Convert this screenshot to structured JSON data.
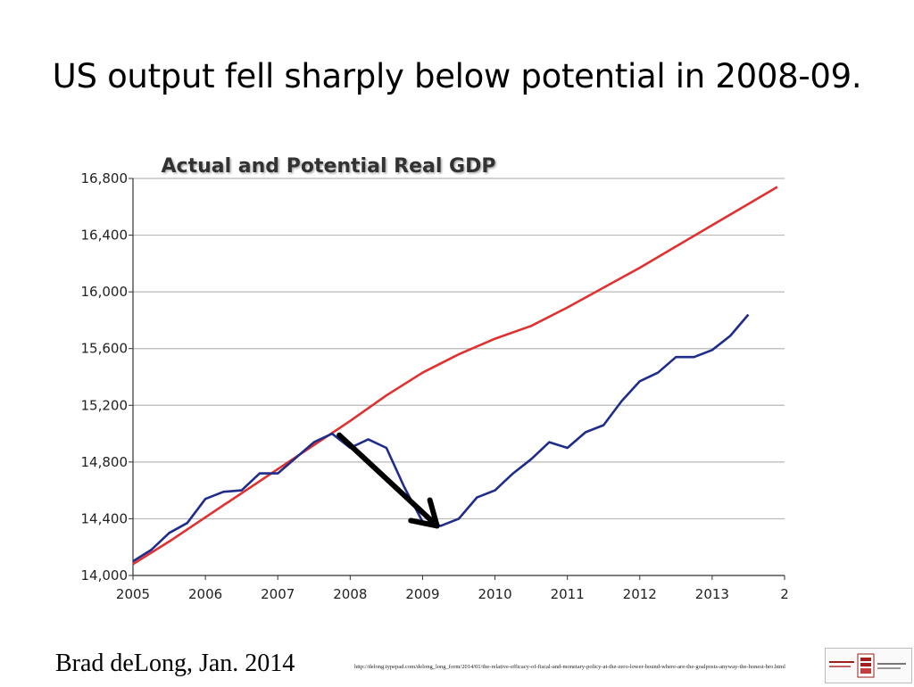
{
  "slide": {
    "title": "US output fell sharply below potential in 2008-09.",
    "credit": "Brad deLong, Jan. 2014",
    "source_url": "http://delong.typepad.com/delong_long_form/2014/01/the-relative-efficacy-of-fiscal-and-monetary-policy-at-the-zero-lower-bound-where-are-the-goalposts-anyway-the-honest-bro.html"
  },
  "chart_data": {
    "type": "line",
    "title": "Actual and Potential Real GDP",
    "xlabel": "",
    "ylabel": "",
    "xlim": [
      2005,
      2014
    ],
    "ylim": [
      14000,
      16800
    ],
    "x_tick_labels": [
      "2005",
      "2006",
      "2007",
      "2008",
      "2009",
      "2010",
      "2011",
      "2012",
      "2013",
      "2"
    ],
    "y_tick_labels": [
      "14,000",
      "14,400",
      "14,800",
      "15,200",
      "15,600",
      "16,000",
      "16,400",
      "16,800"
    ],
    "y_ticks": [
      14000,
      14400,
      14800,
      15200,
      15600,
      16000,
      16400,
      16800
    ],
    "grid": "horizontal",
    "series": [
      {
        "color": "#e03030",
        "points": [
          [
            2005.0,
            14080
          ],
          [
            2005.5,
            14240
          ],
          [
            2006.0,
            14410
          ],
          [
            2006.5,
            14580
          ],
          [
            2007.0,
            14750
          ],
          [
            2007.5,
            14920
          ],
          [
            2008.0,
            15090
          ],
          [
            2008.5,
            15270
          ],
          [
            2009.0,
            15430
          ],
          [
            2009.5,
            15560
          ],
          [
            2010.0,
            15670
          ],
          [
            2010.5,
            15760
          ],
          [
            2011.0,
            15890
          ],
          [
            2011.5,
            16030
          ],
          [
            2012.0,
            16170
          ],
          [
            2012.5,
            16320
          ],
          [
            2013.0,
            16470
          ],
          [
            2013.5,
            16620
          ],
          [
            2013.9,
            16740
          ]
        ]
      },
      {
        "color": "#1f2d8a",
        "points": [
          [
            2005.0,
            14100
          ],
          [
            2005.25,
            14180
          ],
          [
            2005.5,
            14300
          ],
          [
            2005.75,
            14370
          ],
          [
            2006.0,
            14540
          ],
          [
            2006.25,
            14590
          ],
          [
            2006.5,
            14600
          ],
          [
            2006.75,
            14720
          ],
          [
            2007.0,
            14720
          ],
          [
            2007.25,
            14830
          ],
          [
            2007.5,
            14940
          ],
          [
            2007.75,
            15000
          ],
          [
            2008.0,
            14900
          ],
          [
            2008.25,
            14960
          ],
          [
            2008.5,
            14900
          ],
          [
            2008.75,
            14620
          ],
          [
            2009.0,
            14380
          ],
          [
            2009.25,
            14350
          ],
          [
            2009.5,
            14400
          ],
          [
            2009.75,
            14550
          ],
          [
            2010.0,
            14600
          ],
          [
            2010.25,
            14720
          ],
          [
            2010.5,
            14820
          ],
          [
            2010.75,
            14940
          ],
          [
            2011.0,
            14900
          ],
          [
            2011.25,
            15010
          ],
          [
            2011.5,
            15060
          ],
          [
            2011.75,
            15230
          ],
          [
            2012.0,
            15370
          ],
          [
            2012.25,
            15430
          ],
          [
            2012.5,
            15540
          ],
          [
            2012.75,
            15540
          ],
          [
            2013.0,
            15590
          ],
          [
            2013.25,
            15690
          ],
          [
            2013.5,
            15840
          ]
        ]
      }
    ],
    "annotations": [
      {
        "type": "arrow",
        "from": [
          2007.85,
          14990
        ],
        "to": [
          2009.2,
          14350
        ],
        "color": "#000000"
      }
    ]
  }
}
